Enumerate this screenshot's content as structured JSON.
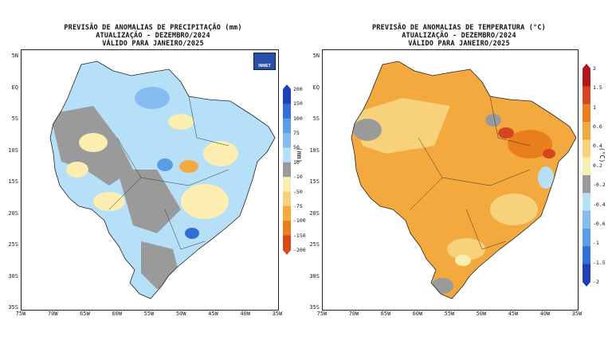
{
  "left": {
    "title_lines": [
      "PREVISÃO DE ANOMALIAS DE PRECIPITAÇÃO (mm)",
      "ATUALIZAÇÃO - DEZEMBRO/2024",
      "VÁLIDO PARA JANEIRO/2025"
    ],
    "unit": "(mm)",
    "logo_text": "INMET",
    "colorbar_labels": [
      "200",
      "150",
      "100",
      "75",
      "50",
      "10",
      "-10",
      "-50",
      "-75",
      "-100",
      "-150",
      "-200"
    ],
    "colorbar_colors": [
      "#1f3fb8",
      "#2f6fd6",
      "#5a9ee6",
      "#86bdf0",
      "#b6dff8",
      "#9a9a9a",
      "#fbeeb0",
      "#f8d27a",
      "#f3a93d",
      "#ea7d1c",
      "#d9481a"
    ]
  },
  "right": {
    "title_lines": [
      "PREVISÃO DE ANOMALIAS DE TEMPERATURA (°C)",
      "ATUALIZAÇÃO - DEZEMBRO/2024",
      "VÁLIDO PARA JANEIRO/2025"
    ],
    "unit": "(°C)",
    "colorbar_labels": [
      "2",
      "1.5",
      "1",
      "0.6",
      "0.4",
      "0.2",
      "-0.2",
      "-0.4",
      "-0.6",
      "-1",
      "-1.5",
      "-2"
    ],
    "colorbar_colors": [
      "#b4161b",
      "#d64422",
      "#ea7d1c",
      "#f3a93d",
      "#f8d27a",
      "#fbeeb0",
      "#9a9a9a",
      "#b6dff8",
      "#86bdf0",
      "#5a9ee6",
      "#2f6fd6",
      "#1f3fb8"
    ]
  },
  "lat_labels": [
    "5N",
    "EQ",
    "5S",
    "10S",
    "15S",
    "20S",
    "25S",
    "30S",
    "35S"
  ],
  "lon_labels": [
    "75W",
    "70W",
    "65W",
    "60W",
    "55W",
    "50W",
    "45W",
    "40W",
    "35W"
  ]
}
